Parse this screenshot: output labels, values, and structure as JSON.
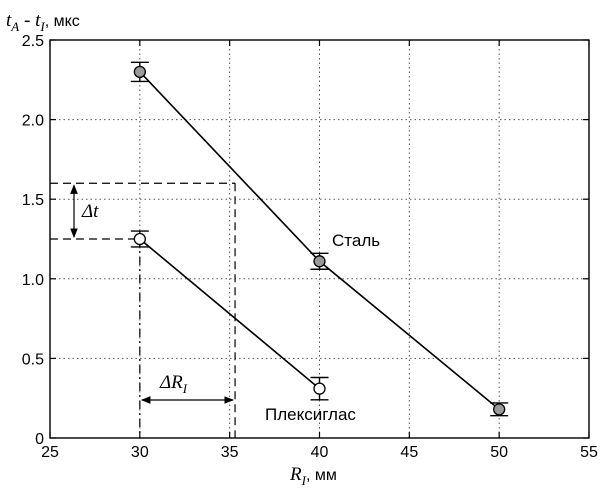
{
  "chart_data": {
    "type": "line",
    "ylabel_main": "t",
    "ylabel_sub1": "A",
    "ylabel_sep": " - ",
    "ylabel_main2": "t",
    "ylabel_sub2": "I",
    "ylabel_unit": ", мкс",
    "xlabel_main": "R",
    "xlabel_sub": "I",
    "xlabel_unit": ", мм",
    "xlim": [
      25,
      55
    ],
    "ylim": [
      0,
      2.5
    ],
    "x_ticks": [
      "25",
      "30",
      "35",
      "40",
      "45",
      "50",
      "55"
    ],
    "y_ticks": [
      "0",
      "0.5",
      "1.0",
      "1.5",
      "2.0",
      "2.5"
    ],
    "grid": true,
    "series": [
      {
        "name": "Сталь",
        "marker_fill": "#9a9a9a",
        "x": [
          30,
          40,
          50
        ],
        "y": [
          2.3,
          1.11,
          0.18
        ],
        "err": [
          0.06,
          0.05,
          0.04
        ]
      },
      {
        "name": "Плексиглас",
        "marker_fill": "#ffffff",
        "x": [
          30,
          40
        ],
        "y": [
          1.25,
          0.31
        ],
        "err": [
          0.05,
          0.07
        ]
      }
    ],
    "annotations": {
      "delta_t": {
        "label_main": "Δt",
        "y_low": 1.25,
        "y_high": 1.6
      },
      "delta_r": {
        "label_main": "ΔR",
        "label_sub": "I",
        "x_low": 30,
        "x_high": 35.3
      }
    }
  }
}
